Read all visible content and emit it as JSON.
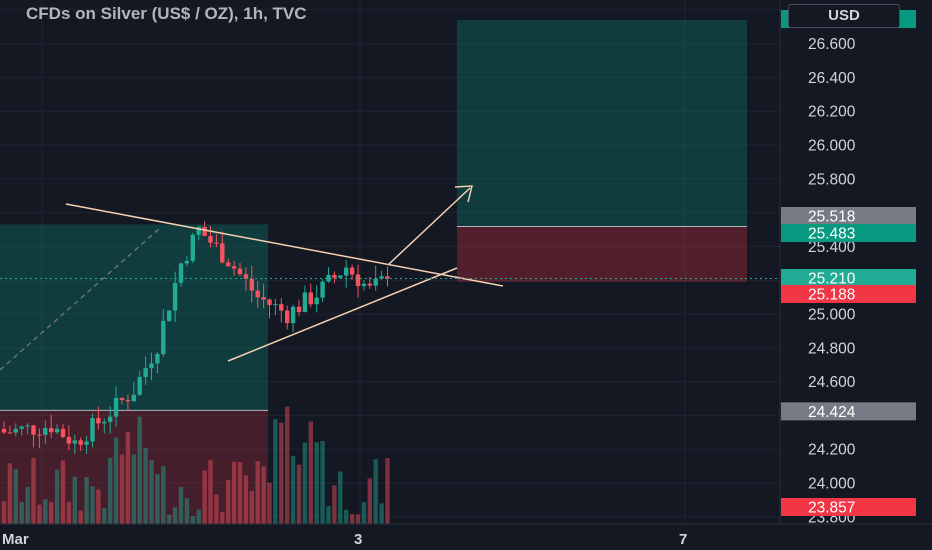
{
  "window": {
    "title": "CFDs on Silver (US$ / OZ), 1h, TVC",
    "currency": "USD"
  },
  "chart_data": {
    "type": "candlestick",
    "price_axis": {
      "ticks": [
        "26.600",
        "26.400",
        "26.200",
        "26.000",
        "25.800",
        "25.400",
        "25.000",
        "24.800",
        "24.600",
        "24.200",
        "24.000",
        "23.800"
      ]
    },
    "time_axis": {
      "ticks": [
        "Mar",
        "3",
        "7"
      ]
    },
    "price_labels": [
      {
        "text": "26.740",
        "price": 26.74,
        "color": "#089981"
      },
      {
        "text": "25.518",
        "price": 25.518,
        "color": "#787b86"
      },
      {
        "text": "25.483",
        "price": 25.483,
        "color": "#089981"
      },
      {
        "text": "25.210",
        "price": 25.21,
        "color": "#22ab94"
      },
      {
        "text": "25.188",
        "price": 25.188,
        "color": "#f23645"
      },
      {
        "text": "24.424",
        "price": 24.424,
        "color": "#787b86"
      },
      {
        "text": "23.857",
        "price": 23.857,
        "color": "#f23645"
      }
    ],
    "last_price": 25.21,
    "colors": {
      "up": "#22ab94",
      "down": "#f7525f",
      "trendline": "#f5d0b0"
    }
  }
}
